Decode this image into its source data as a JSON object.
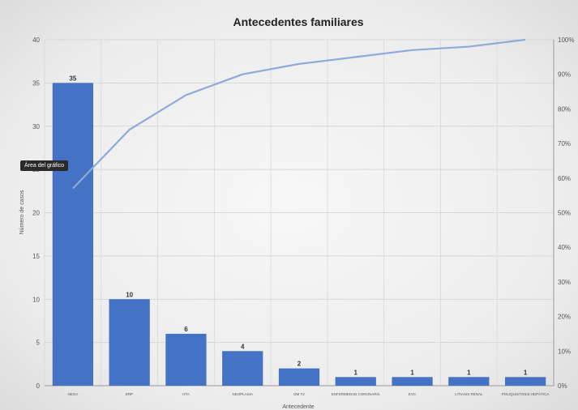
{
  "tooltip": "Área del gráfico",
  "chart_data": {
    "type": "bar",
    "title": "Antecedentes familiares",
    "xlabel": "Antecedente",
    "ylabel": "Número de casos",
    "categories": [
      "NEGA",
      "ERP",
      "HTA",
      "NEOPLASIA",
      "DM T2",
      "ENFERMEDAD CORONARIA",
      "EVC",
      "LITIASIS RENAL",
      "POLIQUISTOSIS HEPÁTICA"
    ],
    "values": [
      35,
      10,
      6,
      4,
      2,
      1,
      1,
      1,
      1
    ],
    "data_labels": [
      "35",
      "10",
      "6",
      "4",
      "2",
      "1",
      "1",
      "1",
      "1"
    ],
    "ylim": [
      0,
      40
    ],
    "yticks": [
      0,
      5,
      10,
      15,
      20,
      25,
      30,
      35,
      40
    ],
    "y2lim": [
      0,
      100
    ],
    "y2ticks": [
      "0%",
      "10%",
      "20%",
      "30%",
      "40%",
      "50%",
      "60%",
      "70%",
      "80%",
      "90%",
      "100%"
    ],
    "cumulative_percent": [
      57,
      74,
      84,
      90,
      93,
      95,
      97,
      98,
      100
    ],
    "bar_color": "#4472c4",
    "line_color": "#8eaadb",
    "grid": true
  }
}
